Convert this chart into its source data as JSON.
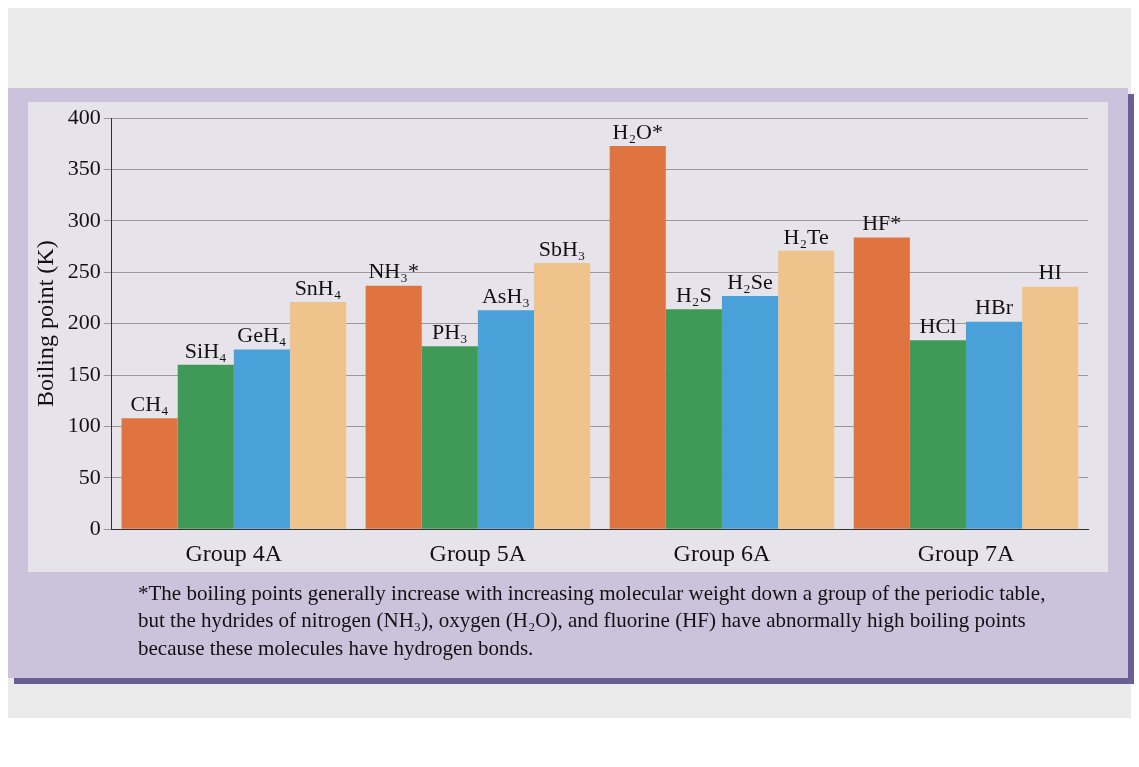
{
  "chart_data": {
    "type": "bar",
    "ylabel": "Boiling point (K)",
    "categories": [
      "Group 4A",
      "Group 5A",
      "Group 6A",
      "Group 7A"
    ],
    "series": [
      {
        "color": "#e07440",
        "values": [
          108,
          237,
          373,
          284
        ],
        "value_labels": [
          "CH₄",
          "NH₃*",
          "H₂O*",
          "HF*"
        ]
      },
      {
        "color": "#3f9a58",
        "values": [
          160,
          178,
          214,
          184
        ],
        "value_labels": [
          "SiH₄",
          "PH₃",
          "H₂S",
          "HCl"
        ]
      },
      {
        "color": "#4aa0d8",
        "values": [
          175,
          213,
          227,
          202
        ],
        "value_labels": [
          "GeH₄",
          "AsH₃",
          "H₂Se",
          "HBr"
        ]
      },
      {
        "color": "#efc48c",
        "values": [
          221,
          259,
          271,
          236
        ],
        "value_labels": [
          "SnH₄",
          "SbH₃",
          "H₂Te",
          "HI"
        ]
      }
    ],
    "ylim": [
      0,
      400
    ],
    "yticks": [
      0,
      50,
      100,
      150,
      200,
      250,
      300,
      350,
      400
    ],
    "grid": "y",
    "legend": false,
    "annotations": [
      "*The boiling points generally increase with increasing molecular weight down a group of the periodic table, but the hydrides of nitrogen (NH₃), oxygen (H₂O), and fluorine (HF) have abnormally high boiling points because these molecules have hydrogen bonds."
    ]
  }
}
